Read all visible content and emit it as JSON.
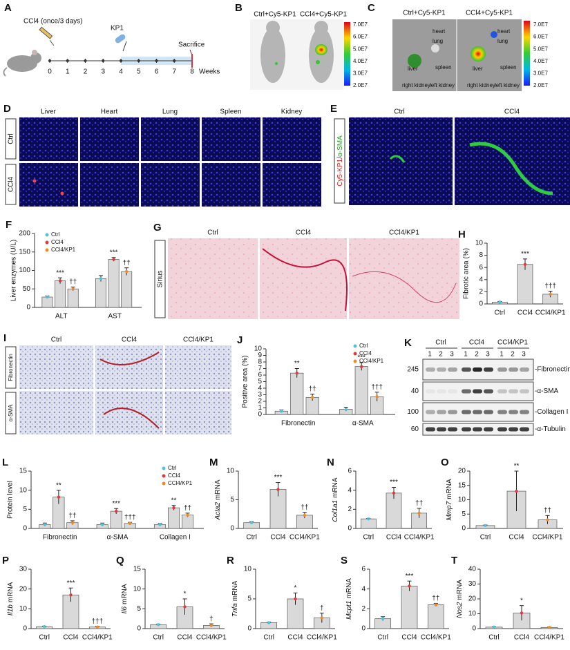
{
  "panels": {
    "A": {
      "label": "A",
      "drug": "CCl4 (once/3 days)",
      "treatment": "KP1",
      "endpoint": "Sacrifice",
      "weeks": [
        0,
        1,
        2,
        3,
        4,
        5,
        6,
        7,
        8
      ],
      "unit": "Weeks"
    },
    "B": {
      "label": "B",
      "groups": [
        "Ctrl+Cy5-KP1",
        "CCl4+Cy5-KP1"
      ],
      "scale": [
        "7.0E7",
        "6.0E7",
        "5.0E7",
        "4.0E7",
        "3.0E7",
        "2.0E7"
      ]
    },
    "C": {
      "label": "C",
      "groups": [
        "Ctrl+Cy5-KP1",
        "CCl4+Cy5-KP1"
      ],
      "organs": [
        "heart",
        "lung",
        "liver",
        "spleen",
        "right kidney",
        "left kidney"
      ],
      "scale": [
        "7.0E7",
        "6.0E7",
        "5.0E7",
        "4.0E7",
        "3.0E7",
        "2.0E7"
      ]
    },
    "D": {
      "label": "D",
      "organs": [
        "Liver",
        "Heart",
        "Lung",
        "Spleen",
        "Kidney"
      ],
      "groups": [
        "Ctrl",
        "CCl4"
      ]
    },
    "E": {
      "label": "E",
      "groups": [
        "Ctrl",
        "CCl4"
      ],
      "stain": [
        "Cy5-KP1",
        "/",
        "α-SMA"
      ]
    },
    "G": {
      "label": "G",
      "groups": [
        "Ctrl",
        "CCl4",
        "CCl4/KP1"
      ],
      "stain": "Sirius"
    },
    "I": {
      "label": "I",
      "groups": [
        "Ctrl",
        "CCl4",
        "CCl4/KP1"
      ],
      "stains": [
        "Fibronectin",
        "α-SMA"
      ]
    },
    "K": {
      "label": "K",
      "groups": [
        "Ctrl",
        "CCl4",
        "CCl4/KP1"
      ],
      "lanes": [
        "1",
        "2",
        "3"
      ],
      "markers": [
        "245",
        "40",
        "100",
        "60"
      ],
      "proteins": [
        "-Fibronectin",
        "-α-SMA",
        "-Collagen I",
        "-α-Tubulin"
      ]
    }
  },
  "chart_data": [
    {
      "type": "bar",
      "panel": "F",
      "ylabel": "Liver enzymes (U/L)",
      "categories": [
        "ALT",
        "AST"
      ],
      "ylim": [
        0,
        200
      ],
      "yticks": [
        0,
        50,
        100,
        150,
        200
      ],
      "bar_color": "#d9d9d9",
      "legend": "top-left",
      "series": [
        {
          "name": "Ctrl",
          "color": "#4fc3d9",
          "values": [
            28,
            78
          ],
          "errors": [
            3,
            8
          ],
          "significance": [
            null,
            null
          ]
        },
        {
          "name": "CCl4",
          "color": "#e03a3a",
          "values": [
            72,
            130
          ],
          "errors": [
            8,
            5
          ],
          "significance": [
            "***",
            "***"
          ]
        },
        {
          "name": "CCl4/KP1",
          "color": "#f08a24",
          "values": [
            50,
            97
          ],
          "errors": [
            5,
            10
          ],
          "significance": [
            "††",
            "††"
          ]
        }
      ]
    },
    {
      "type": "bar",
      "panel": "H",
      "ylabel": "Fibrotic area (%)",
      "categories": [
        "Ctrl",
        "CCl4",
        "CCl4/KP1"
      ],
      "ylim": [
        0,
        10
      ],
      "yticks": [
        0,
        2,
        4,
        6,
        8,
        10
      ],
      "bar_color": "#d9d9d9",
      "colors": [
        "#4fc3d9",
        "#e03a3a",
        "#f08a24"
      ],
      "values": [
        0.3,
        6.5,
        1.6
      ],
      "errors": [
        0.1,
        0.9,
        0.5
      ],
      "significance": [
        null,
        "***",
        "†††"
      ]
    },
    {
      "type": "bar",
      "panel": "J",
      "ylabel": "Positive area (%)",
      "categories": [
        "Fibronectin",
        "α-SMA"
      ],
      "ylim": [
        0,
        10
      ],
      "yticks": [
        0,
        1,
        2,
        3,
        4,
        5,
        6,
        7,
        8,
        9,
        10
      ],
      "bar_color": "#d9d9d9",
      "legend": "top-right",
      "series": [
        {
          "name": "Ctrl",
          "color": "#4fc3d9",
          "values": [
            0.5,
            0.8
          ],
          "errors": [
            0.2,
            0.3
          ],
          "significance": [
            null,
            null
          ]
        },
        {
          "name": "CCl4",
          "color": "#e03a3a",
          "values": [
            6.3,
            7.3
          ],
          "errors": [
            0.7,
            0.6
          ],
          "significance": [
            "**",
            "***"
          ]
        },
        {
          "name": "CCl4/KP1",
          "color": "#f08a24",
          "values": [
            2.6,
            2.7
          ],
          "errors": [
            0.5,
            0.7
          ],
          "significance": [
            "††",
            "†††"
          ]
        }
      ]
    },
    {
      "type": "bar",
      "panel": "L",
      "ylabel": "Protein level",
      "categories": [
        "Fibronectin",
        "α-SMA",
        "Collagen I"
      ],
      "ylim": [
        0,
        15
      ],
      "yticks": [
        0,
        5,
        10,
        15
      ],
      "bar_color": "#d9d9d9",
      "legend": "top-right",
      "series": [
        {
          "name": "Ctrl",
          "color": "#4fc3d9",
          "values": [
            1,
            1,
            1
          ],
          "errors": [
            0.4,
            0.4,
            0.3
          ],
          "significance": [
            null,
            null,
            null
          ]
        },
        {
          "name": "CCl4",
          "color": "#e03a3a",
          "values": [
            8.2,
            4.5,
            5.4
          ],
          "errors": [
            1.8,
            0.7,
            0.6
          ],
          "significance": [
            "**",
            "***",
            "**"
          ]
        },
        {
          "name": "CCl4/KP1",
          "color": "#f08a24",
          "values": [
            1.5,
            1.3,
            3.5
          ],
          "errors": [
            0.5,
            0.3,
            0.5
          ],
          "significance": [
            "††",
            "†††",
            "††"
          ]
        }
      ]
    },
    {
      "type": "bar",
      "panel": "M",
      "ylabel": {
        "gene": "Acta2",
        "text": "mRNA"
      },
      "categories": [
        "Ctrl",
        "CCl4",
        "CCl4/KP1"
      ],
      "ylim": [
        0,
        10
      ],
      "yticks": [
        0,
        5,
        10
      ],
      "bar_color": "#d9d9d9",
      "colors": [
        "#4fc3d9",
        "#e03a3a",
        "#f08a24"
      ],
      "values": [
        1,
        6.8,
        2.3
      ],
      "errors": [
        0.2,
        1.2,
        0.5
      ],
      "significance": [
        null,
        "***",
        "††"
      ]
    },
    {
      "type": "bar",
      "panel": "N",
      "ylabel": {
        "gene": "Col1a1",
        "text": "mRNA"
      },
      "categories": [
        "Ctrl",
        "CCl4",
        "CCl4/KP1"
      ],
      "ylim": [
        0,
        6
      ],
      "yticks": [
        0,
        2,
        4,
        6
      ],
      "bar_color": "#d9d9d9",
      "colors": [
        "#4fc3d9",
        "#e03a3a",
        "#f08a24"
      ],
      "values": [
        1,
        3.7,
        1.6
      ],
      "errors": [
        0.05,
        0.6,
        0.5
      ],
      "significance": [
        null,
        "***",
        "††"
      ]
    },
    {
      "type": "bar",
      "panel": "O",
      "ylabel": {
        "gene": "Mmp7",
        "text": "mRNA"
      },
      "categories": [
        "Ctrl",
        "CCl4",
        "CCl4/KP1"
      ],
      "ylim": [
        0,
        20
      ],
      "yticks": [
        0,
        5,
        10,
        15,
        20
      ],
      "bar_color": "#d9d9d9",
      "colors": [
        "#4fc3d9",
        "#e03a3a",
        "#f08a24"
      ],
      "values": [
        1,
        13,
        3
      ],
      "errors": [
        0.2,
        7,
        1.5
      ],
      "significance": [
        null,
        "**",
        "††"
      ]
    },
    {
      "type": "bar",
      "panel": "P",
      "ylabel": {
        "gene": "Il1b",
        "text": "mRNA"
      },
      "categories": [
        "Ctrl",
        "CCl4",
        "CCl4/KP1"
      ],
      "ylim": [
        0,
        30
      ],
      "yticks": [
        0,
        10,
        20,
        30
      ],
      "bar_color": "#d9d9d9",
      "colors": [
        "#4fc3d9",
        "#e03a3a",
        "#f08a24"
      ],
      "values": [
        1,
        17,
        0.8
      ],
      "errors": [
        0.2,
        3.5,
        0.3
      ],
      "significance": [
        null,
        "***",
        "†††"
      ]
    },
    {
      "type": "bar",
      "panel": "Q",
      "ylabel": {
        "gene": "Il6",
        "text": "mRNA"
      },
      "categories": [
        "Ctrl",
        "CCl4",
        "CCl4/KP1"
      ],
      "ylim": [
        0,
        15
      ],
      "yticks": [
        0,
        5,
        10,
        15
      ],
      "bar_color": "#d9d9d9",
      "colors": [
        "#4fc3d9",
        "#e03a3a",
        "#f08a24"
      ],
      "values": [
        1,
        5.5,
        0.8
      ],
      "errors": [
        0.1,
        2,
        0.4
      ],
      "significance": [
        null,
        "*",
        "†"
      ]
    },
    {
      "type": "bar",
      "panel": "R",
      "ylabel": {
        "gene": "Tnfa",
        "text": "mRNA"
      },
      "categories": [
        "Ctrl",
        "CCl4",
        "CCl4/KP1"
      ],
      "ylim": [
        0,
        10
      ],
      "yticks": [
        0,
        5,
        10
      ],
      "bar_color": "#d9d9d9",
      "colors": [
        "#4fc3d9",
        "#e03a3a",
        "#f08a24"
      ],
      "values": [
        1,
        5,
        1.8
      ],
      "errors": [
        0.1,
        1,
        0.8
      ],
      "significance": [
        null,
        "*",
        "†"
      ]
    },
    {
      "type": "bar",
      "panel": "S",
      "ylabel": {
        "gene": "Mcpt1",
        "text": "mRNA"
      },
      "categories": [
        "Ctrl",
        "CCl4",
        "CCl4/KP1"
      ],
      "ylim": [
        0,
        6
      ],
      "yticks": [
        0,
        2,
        4,
        6
      ],
      "bar_color": "#d9d9d9",
      "colors": [
        "#4fc3d9",
        "#e03a3a",
        "#f08a24"
      ],
      "values": [
        1,
        4.3,
        2.4
      ],
      "errors": [
        0.2,
        0.5,
        0.15
      ],
      "significance": [
        null,
        "***",
        "††"
      ]
    },
    {
      "type": "bar",
      "panel": "T",
      "ylabel": {
        "gene": "Nos2",
        "text": "mRNA"
      },
      "categories": [
        "Ctrl",
        "CCl4",
        "CCl4/KP1"
      ],
      "ylim": [
        0,
        40
      ],
      "yticks": [
        0,
        10,
        20,
        30,
        40
      ],
      "bar_color": "#d9d9d9",
      "colors": [
        "#4fc3d9",
        "#e03a3a",
        "#f08a24"
      ],
      "values": [
        1,
        10.5,
        0.8
      ],
      "errors": [
        0.2,
        5,
        0.2
      ],
      "significance": [
        null,
        "*",
        null
      ]
    }
  ]
}
